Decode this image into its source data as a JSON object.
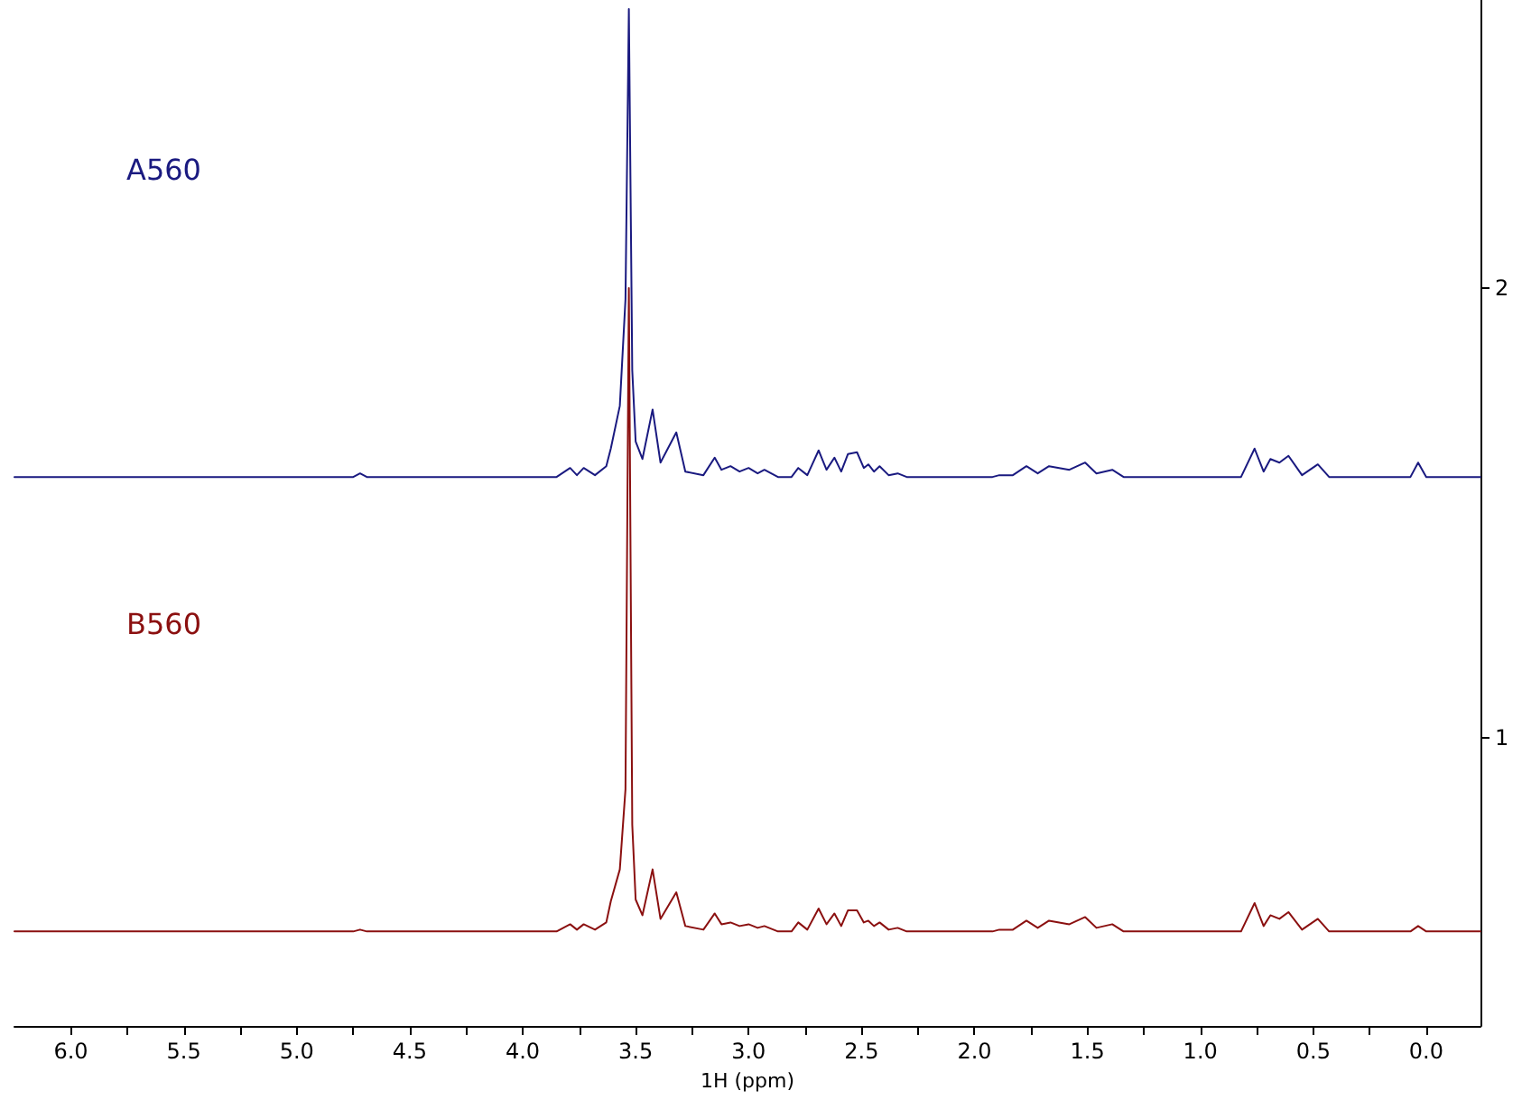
{
  "chart_data": {
    "type": "line",
    "xlabel": "1H (ppm)",
    "xlim": [
      6.25,
      -0.24
    ],
    "ylim": [
      0.36,
      2.64
    ],
    "xticks": [
      {
        "value": 6,
        "label": "6.0"
      },
      {
        "value": 5.75,
        "label": null
      },
      {
        "value": 5.5,
        "label": "5.5"
      },
      {
        "value": 5.25,
        "label": null
      },
      {
        "value": 5,
        "label": "5.0"
      },
      {
        "value": 4.75,
        "label": null
      },
      {
        "value": 4.5,
        "label": "4.5"
      },
      {
        "value": 4.25,
        "label": null
      },
      {
        "value": 4,
        "label": "4.0"
      },
      {
        "value": 3.75,
        "label": null
      },
      {
        "value": 3.5,
        "label": "3.5"
      },
      {
        "value": 3.25,
        "label": null
      },
      {
        "value": 3,
        "label": "3.0"
      },
      {
        "value": 2.75,
        "label": null
      },
      {
        "value": 2.5,
        "label": "2.5"
      },
      {
        "value": 2.25,
        "label": null
      },
      {
        "value": 2,
        "label": "2.0"
      },
      {
        "value": 1.75,
        "label": null
      },
      {
        "value": 1.5,
        "label": "1.5"
      },
      {
        "value": 1.25,
        "label": null
      },
      {
        "value": 1,
        "label": "1.0"
      },
      {
        "value": 0.75,
        "label": null
      },
      {
        "value": 0.5,
        "label": "0.5"
      },
      {
        "value": 0.25,
        "label": null
      },
      {
        "value": 0,
        "label": "0.0"
      }
    ],
    "yticks": [
      1,
      2
    ],
    "grid": false,
    "legend": false,
    "marker": "none",
    "line_style": "solid",
    "x": [
      6.25,
      4.75,
      4.72,
      4.69,
      3.85,
      3.79,
      3.76,
      3.73,
      3.68,
      3.63,
      3.61,
      3.57,
      3.545,
      3.53,
      3.515,
      3.5,
      3.47,
      3.425,
      3.39,
      3.32,
      3.28,
      3.2,
      3.15,
      3.12,
      3.08,
      3.04,
      3.0,
      2.96,
      2.93,
      2.87,
      2.81,
      2.78,
      2.74,
      2.69,
      2.655,
      2.62,
      2.59,
      2.56,
      2.52,
      2.49,
      2.47,
      2.445,
      2.42,
      2.38,
      2.34,
      2.3,
      1.92,
      1.89,
      1.83,
      1.77,
      1.72,
      1.67,
      1.58,
      1.51,
      1.46,
      1.39,
      1.34,
      0.82,
      0.76,
      0.72,
      0.69,
      0.65,
      0.61,
      0.55,
      0.48,
      0.43,
      0.07,
      0.036,
      0.0,
      -0.24
    ],
    "series": [
      {
        "name": "A560",
        "color": "#1a1a80",
        "values": [
          1.58,
          1.58,
          1.588,
          1.58,
          1.58,
          1.6,
          1.584,
          1.6,
          1.584,
          1.604,
          1.643,
          1.738,
          1.975,
          2.62,
          1.817,
          1.659,
          1.62,
          1.73,
          1.612,
          1.679,
          1.592,
          1.584,
          1.623,
          1.596,
          1.604,
          1.592,
          1.6,
          1.588,
          1.596,
          1.58,
          1.58,
          1.6,
          1.584,
          1.639,
          1.596,
          1.623,
          1.592,
          1.631,
          1.635,
          1.6,
          1.608,
          1.592,
          1.604,
          1.584,
          1.588,
          1.58,
          1.58,
          1.584,
          1.584,
          1.604,
          1.588,
          1.604,
          1.596,
          1.612,
          1.588,
          1.596,
          1.58,
          1.58,
          1.643,
          1.592,
          1.62,
          1.612,
          1.627,
          1.584,
          1.608,
          1.58,
          1.58,
          1.612,
          1.58,
          1.58
        ]
      },
      {
        "name": "B560",
        "color": "#8b1010",
        "values": [
          0.57,
          0.57,
          0.574,
          0.57,
          0.57,
          0.586,
          0.574,
          0.586,
          0.574,
          0.59,
          0.637,
          0.708,
          0.886,
          2.0,
          0.807,
          0.641,
          0.606,
          0.708,
          0.598,
          0.657,
          0.582,
          0.574,
          0.61,
          0.586,
          0.59,
          0.582,
          0.586,
          0.578,
          0.582,
          0.57,
          0.57,
          0.59,
          0.574,
          0.621,
          0.586,
          0.61,
          0.582,
          0.617,
          0.617,
          0.59,
          0.594,
          0.582,
          0.59,
          0.574,
          0.578,
          0.57,
          0.57,
          0.574,
          0.574,
          0.594,
          0.578,
          0.594,
          0.586,
          0.602,
          0.578,
          0.586,
          0.57,
          0.57,
          0.633,
          0.582,
          0.606,
          0.598,
          0.613,
          0.574,
          0.598,
          0.57,
          0.57,
          0.582,
          0.57,
          0.57
        ]
      }
    ]
  }
}
